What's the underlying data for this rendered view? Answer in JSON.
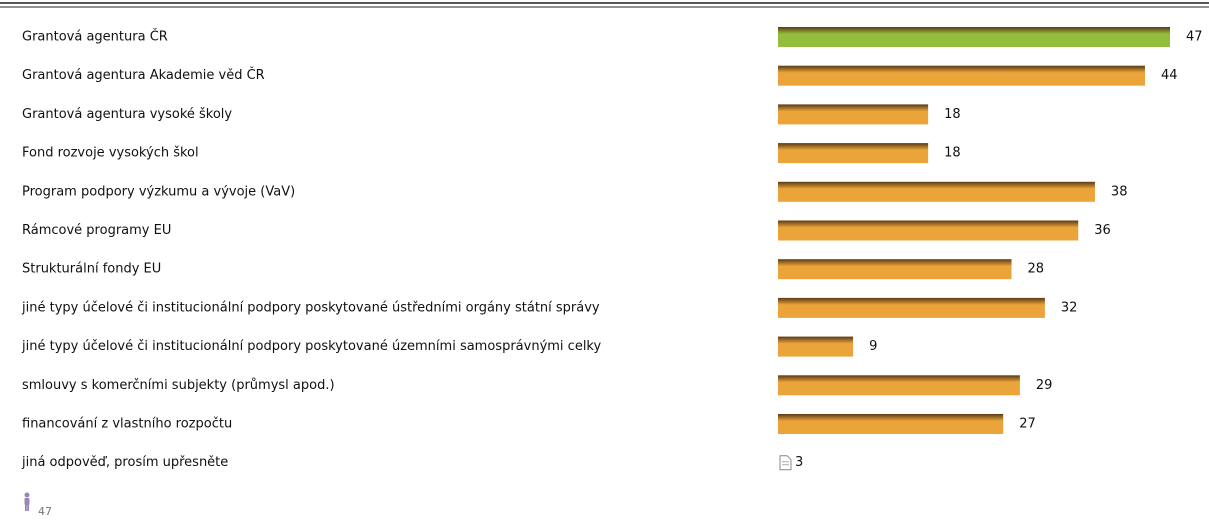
{
  "chart_data": {
    "type": "bar",
    "orientation": "horizontal",
    "categories": [
      "Grantová agentura ČR",
      "Grantová agentura Akademie věd ČR",
      "Grantová agentura vysoké školy",
      "Fond rozvoje vysokých škol",
      "Program podpory výzkumu a vývoje (VaV)",
      "Rámcové programy EU",
      "Strukturální fondy EU",
      "jiné typy účelové či institucionální podpory poskytované ústředními orgány státní správy",
      "jiné typy účelové či institucionální podpory poskytované územními samosprávnými celky",
      "smlouvy s komerčními subjekty (průmysl apod.)",
      "financování z vlastního rozpočtu"
    ],
    "values": [
      47,
      44,
      18,
      18,
      38,
      36,
      28,
      32,
      9,
      29,
      27
    ],
    "color": "#eaa43a",
    "highlight_color": "#93bd3c",
    "open_answer": {
      "label": "jiná odpověď, prosím upřesněte",
      "count": 3
    },
    "respondents": 47
  }
}
